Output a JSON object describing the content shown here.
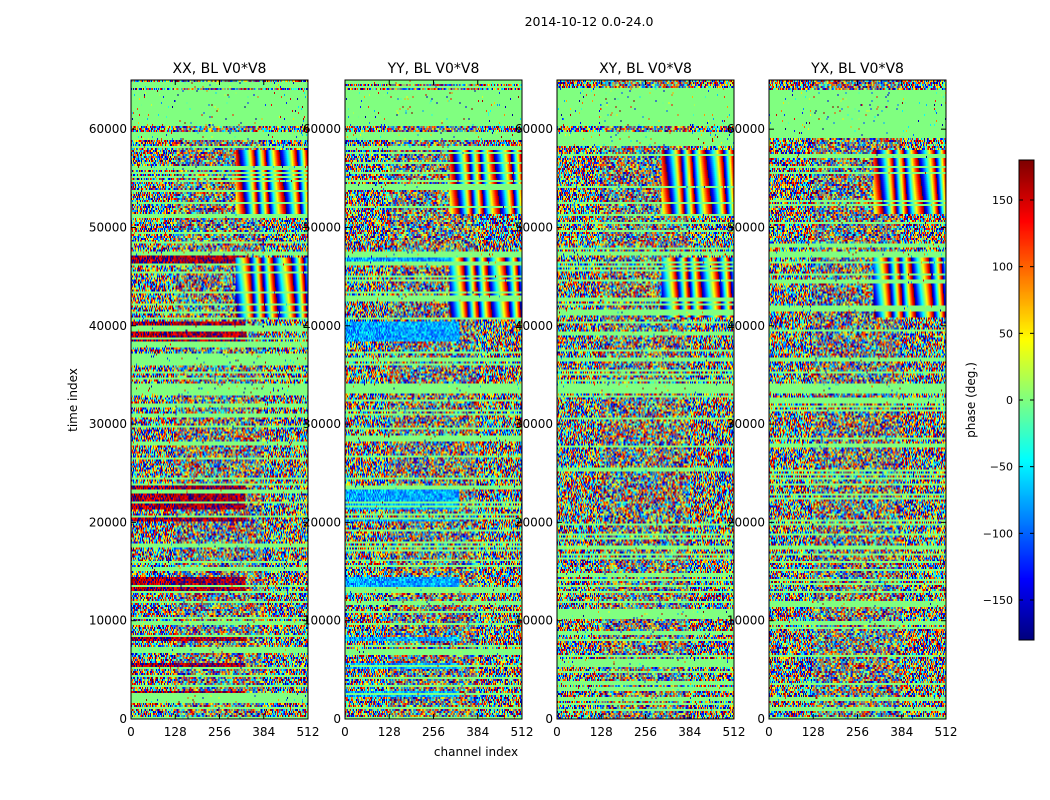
{
  "figure": {
    "suptitle": "2014-10-12 0.0-24.0",
    "xlabel": "channel index",
    "ylabel": "time index"
  },
  "colorbar": {
    "label": "phase (deg.)",
    "colormap": "jet",
    "range": [
      -180,
      180
    ],
    "ticks": [
      -150,
      -100,
      -50,
      0,
      50,
      100,
      150
    ],
    "tick_labels": [
      "−150",
      "−100",
      "−50",
      "0",
      "50",
      "100",
      "150"
    ]
  },
  "chart_data": [
    {
      "type": "heatmap",
      "title": "XX, BL V0*V8",
      "xlabel": "channel index",
      "ylabel": "time index",
      "xlim": [
        0,
        512
      ],
      "ylim": [
        0,
        65000
      ],
      "xticks": [
        0,
        128,
        256,
        384,
        512
      ],
      "yticks": [
        0,
        10000,
        20000,
        30000,
        40000,
        50000,
        60000
      ],
      "value_range": [
        -180,
        180
      ],
      "bias": 165
    },
    {
      "type": "heatmap",
      "title": "YY, BL V0*V8",
      "xlabel": "channel index",
      "ylabel": "",
      "xlim": [
        0,
        512
      ],
      "ylim": [
        0,
        65000
      ],
      "xticks": [
        0,
        128,
        256,
        384,
        512
      ],
      "yticks": [
        0,
        10000,
        20000,
        30000,
        40000,
        50000,
        60000
      ],
      "value_range": [
        -180,
        180
      ],
      "bias": -75
    },
    {
      "type": "heatmap",
      "title": "XY, BL V0*V8",
      "xlabel": "channel index",
      "ylabel": "",
      "xlim": [
        0,
        512
      ],
      "ylim": [
        0,
        65000
      ],
      "xticks": [
        0,
        128,
        256,
        384,
        512
      ],
      "yticks": [
        0,
        10000,
        20000,
        30000,
        40000,
        50000,
        60000
      ],
      "value_range": [
        -180,
        180
      ],
      "bias": 0
    },
    {
      "type": "heatmap",
      "title": "YX, BL V0*V8",
      "xlabel": "channel index",
      "ylabel": "",
      "xlim": [
        0,
        512
      ],
      "ylim": [
        0,
        65000
      ],
      "xticks": [
        0,
        128,
        256,
        384,
        512
      ],
      "yticks": [
        0,
        10000,
        20000,
        30000,
        40000,
        50000,
        60000
      ],
      "value_range": [
        -180,
        180
      ],
      "bias": 0
    }
  ]
}
